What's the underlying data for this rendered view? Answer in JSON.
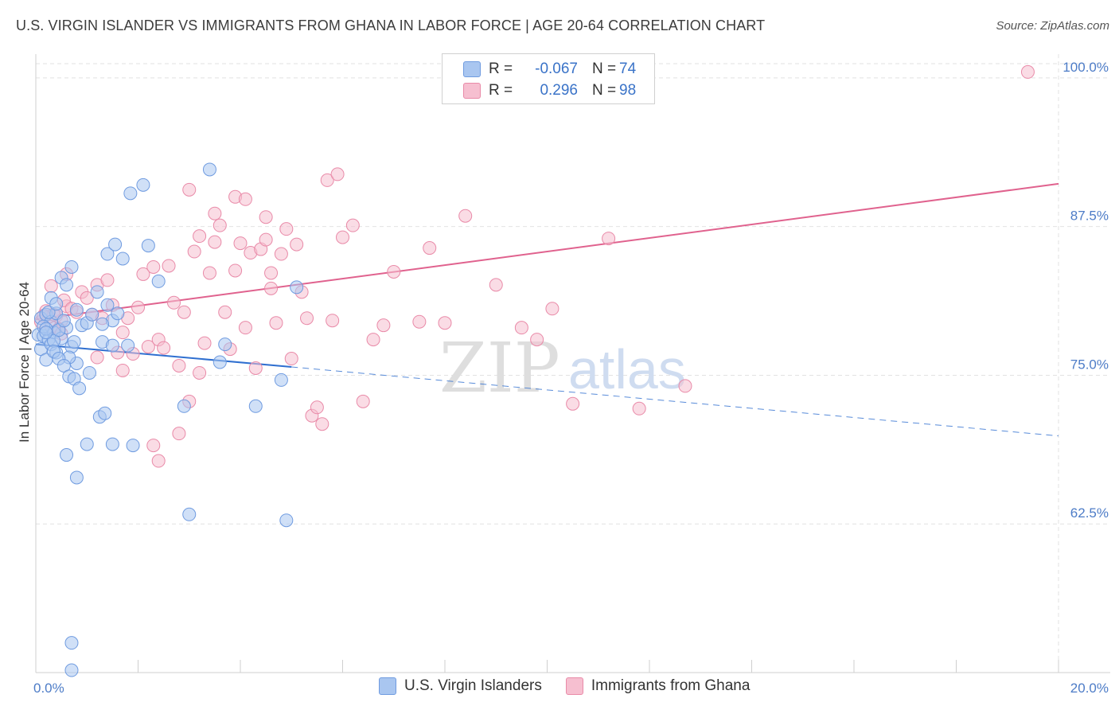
{
  "title": "U.S. VIRGIN ISLANDER VS IMMIGRANTS FROM GHANA IN LABOR FORCE | AGE 20-64 CORRELATION CHART",
  "source": "Source: ZipAtlas.com",
  "watermark": {
    "zip": "ZIP",
    "atlas": "atlas"
  },
  "legend": {
    "rows": [
      {
        "r_label": "R =",
        "r_value": "-0.067",
        "n_label": "N =",
        "n_value": "74"
      },
      {
        "r_label": "R =",
        "r_value": "0.296",
        "n_label": "N =",
        "n_value": "98"
      }
    ]
  },
  "bottom_legend": {
    "series1": "U.S. Virgin Islanders",
    "series2": "Immigrants from Ghana"
  },
  "colors": {
    "blue_fill": "#a9c6f0",
    "blue_stroke": "#6f9be0",
    "blue_line": "#2f6fd0",
    "pink_fill": "#f6bfd0",
    "pink_stroke": "#e98aa8",
    "pink_line": "#e0628e",
    "tick_text": "#4d7cc7"
  },
  "chart_data": {
    "type": "scatter",
    "title": "U.S. VIRGIN ISLANDER VS IMMIGRANTS FROM GHANA IN LABOR FORCE | AGE 20-64 CORRELATION CHART",
    "xlabel": "",
    "ylabel": "In Labor Force | Age 20-64",
    "xlim": [
      0,
      20
    ],
    "ylim": [
      50,
      102
    ],
    "x_tick_labels": [
      "0.0%",
      "20.0%"
    ],
    "y_ticks": [
      62.5,
      75.0,
      87.5,
      100.0
    ],
    "y_tick_labels": [
      "62.5%",
      "75.0%",
      "87.5%",
      "100.0%"
    ],
    "grid": true,
    "series": [
      {
        "name": "U.S. Virgin Islanders",
        "r": -0.067,
        "n": 74,
        "trend": {
          "x0": 0.0,
          "y0": 77.6,
          "x1": 5.0,
          "y1": 75.7,
          "dash_to_x": 20.0,
          "dash_to_y": 69.9
        },
        "points": [
          [
            0.05,
            78.4
          ],
          [
            0.1,
            79.8
          ],
          [
            0.15,
            78.3
          ],
          [
            0.2,
            80.1
          ],
          [
            0.25,
            78.0
          ],
          [
            0.3,
            79.5
          ],
          [
            0.35,
            78.6
          ],
          [
            0.4,
            80.2
          ],
          [
            0.1,
            77.2
          ],
          [
            0.2,
            76.3
          ],
          [
            0.3,
            77.6
          ],
          [
            0.4,
            76.9
          ],
          [
            0.5,
            78.1
          ],
          [
            0.6,
            79.0
          ],
          [
            0.7,
            77.4
          ],
          [
            0.8,
            76.0
          ],
          [
            0.15,
            79.1
          ],
          [
            0.25,
            80.3
          ],
          [
            0.35,
            77.9
          ],
          [
            0.45,
            78.8
          ],
          [
            0.55,
            79.6
          ],
          [
            0.65,
            76.5
          ],
          [
            0.75,
            77.8
          ],
          [
            0.9,
            79.2
          ],
          [
            0.2,
            78.9
          ],
          [
            0.3,
            81.5
          ],
          [
            0.4,
            81.0
          ],
          [
            0.5,
            83.2
          ],
          [
            0.6,
            82.6
          ],
          [
            0.7,
            84.1
          ],
          [
            0.8,
            80.5
          ],
          [
            1.0,
            79.4
          ],
          [
            1.1,
            80.1
          ],
          [
            1.2,
            82.0
          ],
          [
            1.3,
            77.8
          ],
          [
            1.4,
            80.9
          ],
          [
            1.5,
            79.6
          ],
          [
            1.6,
            80.2
          ],
          [
            1.7,
            84.8
          ],
          [
            1.8,
            77.5
          ],
          [
            0.35,
            77.0
          ],
          [
            0.45,
            76.4
          ],
          [
            0.55,
            75.8
          ],
          [
            0.65,
            74.9
          ],
          [
            0.75,
            74.7
          ],
          [
            0.85,
            73.9
          ],
          [
            1.05,
            75.2
          ],
          [
            1.25,
            71.5
          ],
          [
            1.35,
            71.8
          ],
          [
            1.5,
            69.2
          ],
          [
            1.9,
            69.1
          ],
          [
            0.6,
            68.3
          ],
          [
            0.8,
            66.4
          ],
          [
            1.0,
            69.2
          ],
          [
            1.3,
            79.3
          ],
          [
            1.4,
            85.2
          ],
          [
            1.55,
            86.0
          ],
          [
            1.85,
            90.3
          ],
          [
            2.1,
            91.0
          ],
          [
            2.2,
            85.9
          ],
          [
            2.4,
            82.9
          ],
          [
            2.9,
            72.4
          ],
          [
            3.0,
            63.3
          ],
          [
            3.4,
            92.3
          ],
          [
            3.6,
            76.1
          ],
          [
            3.7,
            77.6
          ],
          [
            4.3,
            72.4
          ],
          [
            4.8,
            74.6
          ],
          [
            4.9,
            62.8
          ],
          [
            5.1,
            82.4
          ],
          [
            0.2,
            78.6
          ],
          [
            0.7,
            52.5
          ],
          [
            1.5,
            77.5
          ],
          [
            0.7,
            50.2
          ]
        ]
      },
      {
        "name": "Immigrants from Ghana",
        "r": 0.296,
        "n": 98,
        "trend": {
          "x0": 0.0,
          "y0": 79.7,
          "x1": 20.0,
          "y1": 91.1
        },
        "points": [
          [
            0.1,
            79.5
          ],
          [
            0.2,
            80.4
          ],
          [
            0.3,
            79.1
          ],
          [
            0.4,
            80.0
          ],
          [
            0.5,
            79.6
          ],
          [
            0.6,
            80.8
          ],
          [
            0.25,
            79.9
          ],
          [
            0.35,
            80.1
          ],
          [
            0.45,
            78.9
          ],
          [
            0.55,
            81.3
          ],
          [
            0.7,
            80.6
          ],
          [
            0.8,
            80.3
          ],
          [
            0.9,
            82.0
          ],
          [
            1.0,
            81.5
          ],
          [
            1.1,
            80.1
          ],
          [
            1.2,
            82.6
          ],
          [
            1.3,
            79.8
          ],
          [
            1.4,
            83.0
          ],
          [
            1.5,
            80.9
          ],
          [
            1.6,
            76.9
          ],
          [
            1.7,
            78.6
          ],
          [
            1.8,
            79.8
          ],
          [
            1.9,
            76.8
          ],
          [
            2.0,
            80.7
          ],
          [
            2.1,
            83.5
          ],
          [
            2.2,
            77.4
          ],
          [
            2.3,
            84.1
          ],
          [
            2.4,
            78.0
          ],
          [
            2.5,
            77.3
          ],
          [
            2.6,
            84.2
          ],
          [
            2.7,
            81.1
          ],
          [
            2.8,
            75.8
          ],
          [
            2.9,
            80.3
          ],
          [
            3.0,
            72.8
          ],
          [
            3.1,
            85.4
          ],
          [
            3.2,
            86.7
          ],
          [
            3.3,
            77.7
          ],
          [
            3.4,
            83.6
          ],
          [
            3.5,
            86.2
          ],
          [
            3.6,
            87.6
          ],
          [
            3.7,
            80.3
          ],
          [
            3.8,
            77.2
          ],
          [
            3.9,
            83.8
          ],
          [
            4.0,
            86.1
          ],
          [
            4.1,
            79.0
          ],
          [
            4.2,
            85.3
          ],
          [
            4.3,
            75.6
          ],
          [
            4.4,
            85.6
          ],
          [
            4.5,
            86.4
          ],
          [
            4.6,
            82.3
          ],
          [
            4.7,
            79.4
          ],
          [
            4.8,
            85.2
          ],
          [
            4.9,
            87.3
          ],
          [
            5.0,
            76.4
          ],
          [
            5.1,
            86.0
          ],
          [
            5.2,
            82.0
          ],
          [
            5.3,
            79.8
          ],
          [
            5.4,
            71.6
          ],
          [
            5.5,
            72.3
          ],
          [
            5.6,
            70.9
          ],
          [
            5.7,
            91.4
          ],
          [
            5.8,
            79.6
          ],
          [
            6.0,
            86.6
          ],
          [
            6.2,
            87.6
          ],
          [
            6.4,
            72.8
          ],
          [
            6.6,
            78.0
          ],
          [
            6.8,
            79.2
          ],
          [
            7.0,
            83.7
          ],
          [
            7.5,
            79.5
          ],
          [
            7.7,
            85.7
          ],
          [
            8.0,
            79.4
          ],
          [
            8.4,
            88.4
          ],
          [
            9.0,
            82.6
          ],
          [
            9.5,
            79.0
          ],
          [
            9.8,
            78.0
          ],
          [
            10.1,
            80.6
          ],
          [
            10.5,
            72.6
          ],
          [
            11.2,
            86.5
          ],
          [
            11.8,
            72.2
          ],
          [
            12.7,
            74.1
          ],
          [
            0.15,
            80.0
          ],
          [
            0.3,
            82.5
          ],
          [
            0.5,
            78.5
          ],
          [
            0.6,
            83.5
          ],
          [
            1.2,
            76.5
          ],
          [
            1.7,
            75.4
          ],
          [
            2.3,
            69.1
          ],
          [
            2.4,
            67.8
          ],
          [
            2.8,
            70.1
          ],
          [
            3.2,
            75.2
          ],
          [
            3.5,
            88.6
          ],
          [
            3.9,
            90.0
          ],
          [
            4.5,
            88.3
          ],
          [
            4.1,
            89.8
          ],
          [
            4.6,
            83.6
          ],
          [
            3.0,
            90.6
          ],
          [
            5.9,
            91.9
          ],
          [
            19.4,
            100.5
          ]
        ]
      }
    ]
  }
}
